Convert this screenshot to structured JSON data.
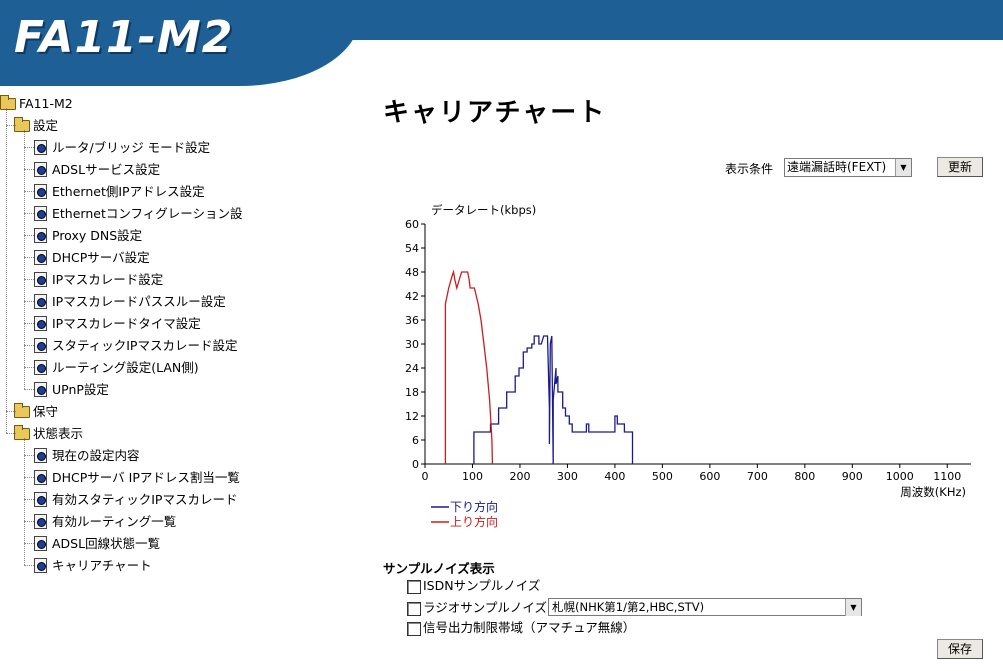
{
  "header": {
    "logo_text": "FA11-M2"
  },
  "colors": {
    "header_blue": "#1e5f95",
    "down_line": "#1a1a8c",
    "up_line": "#c81e1e"
  },
  "sidebar": {
    "root": "FA11-M2",
    "groups": [
      {
        "label": "設定",
        "items": [
          "ルータ/ブリッジ モード設定",
          "ADSLサービス設定",
          "Ethernet側IPアドレス設定",
          "Ethernetコンフィグレーション設",
          "Proxy DNS設定",
          "DHCPサーバ設定",
          "IPマスカレード設定",
          "IPマスカレードパススルー設定",
          "IPマスカレードタイマ設定",
          "スタティックIPマスカレード設定",
          "ルーティング設定(LAN側)",
          "UPnP設定"
        ]
      },
      {
        "label": "保守",
        "items": []
      },
      {
        "label": "状態表示",
        "items": [
          "現在の設定内容",
          "DHCPサーバ IPアドレス割当一覧",
          "有効スタティックIPマスカレード",
          "有効ルーティング一覧",
          "ADSL回線状態一覧",
          "キャリアチャート"
        ]
      }
    ]
  },
  "main": {
    "title": "キャリアチャート",
    "condition_label": "表示条件",
    "condition_value": "遠端漏話時(FEXT)",
    "update_button": "更新",
    "noise_title": "サンプルノイズ表示",
    "isdn_label": "ISDNサンプルノイズ",
    "radio_label": "ラジオサンプルノイズ",
    "radio_value": "札幌(NHK第1/第2,HBC,STV)",
    "amateur_label": "信号出力制限帯域（アマチュア無線）",
    "save_button": "保存"
  },
  "chart_data": {
    "type": "line",
    "ylabel": "データレート(kbps)",
    "xlabel": "周波数(KHz)",
    "ylim": [
      0,
      60
    ],
    "xlim": [
      0,
      1150
    ],
    "yticks": [
      0,
      6,
      12,
      18,
      24,
      30,
      36,
      42,
      48,
      54,
      60
    ],
    "xticks": [
      0,
      100,
      200,
      300,
      400,
      500,
      600,
      700,
      800,
      900,
      1000,
      1100
    ],
    "grid": false,
    "legend_position": "bottom-left",
    "series": [
      {
        "name": "下り方向",
        "color": "#1a1a8c",
        "x": [
          103,
          103,
          112,
          112,
          138,
          138,
          155,
          155,
          172,
          172,
          190,
          190,
          198,
          198,
          207,
          207,
          215,
          215,
          225,
          225,
          230,
          230,
          240,
          240,
          245,
          250,
          258,
          262,
          262,
          264,
          267,
          270,
          270,
          276,
          276,
          280,
          280,
          290,
          290,
          296,
          296,
          304,
          304,
          310,
          310,
          340,
          340,
          345,
          345,
          400,
          400,
          405,
          405,
          420,
          420,
          437,
          437
        ],
        "y": [
          0,
          8,
          8,
          8,
          8,
          10,
          10,
          14,
          14,
          18,
          18,
          22,
          22,
          24,
          24,
          28,
          28,
          29,
          29,
          30,
          30,
          32,
          32,
          30,
          30,
          32,
          32,
          14,
          5,
          30,
          32,
          0,
          16,
          24,
          20,
          22,
          18,
          18,
          14,
          14,
          12,
          12,
          10,
          10,
          8,
          8,
          10,
          10,
          8,
          8,
          12,
          12,
          10,
          10,
          8,
          8,
          0
        ]
      },
      {
        "name": "上り方向",
        "color": "#c81e1e",
        "x": [
          43,
          43,
          50,
          57,
          60,
          63,
          67,
          72,
          77,
          82,
          87,
          90,
          93,
          95,
          100,
          104,
          108,
          112,
          118,
          124,
          130,
          136,
          141,
          142
        ],
        "y": [
          0,
          40,
          44,
          47,
          48,
          46,
          44,
          46,
          48,
          48,
          48,
          48,
          46,
          44,
          44,
          44,
          42,
          40,
          36,
          30,
          24,
          16,
          6,
          0
        ]
      }
    ]
  }
}
